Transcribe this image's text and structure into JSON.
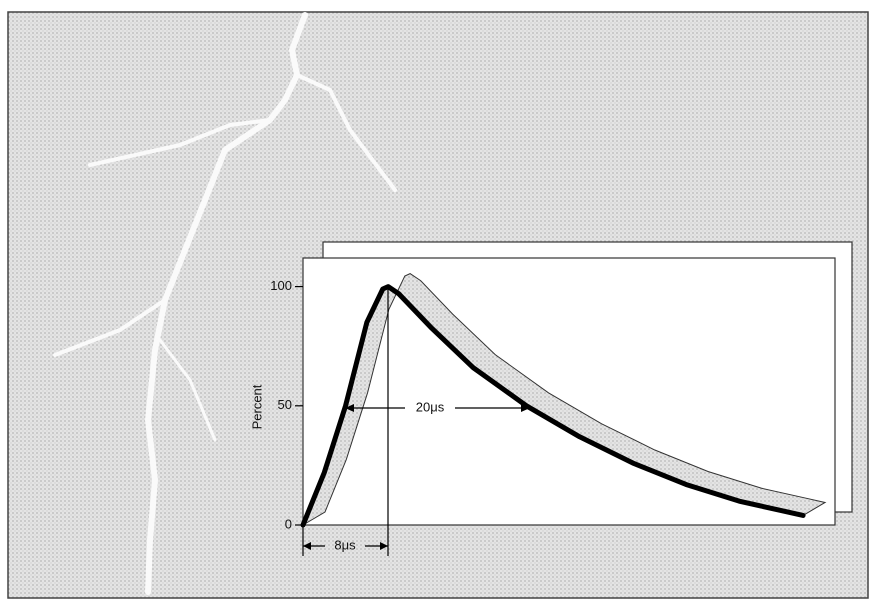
{
  "chart_data": {
    "type": "line",
    "y_label": "Percent",
    "x": [
      0,
      2,
      4,
      6,
      7.5,
      8,
      9,
      12,
      16,
      21,
      26,
      31,
      36,
      41,
      45,
      47
    ],
    "series": [
      {
        "color": "#000000",
        "values": [
          0,
          22,
          50,
          85,
          99,
          100,
          97,
          83,
          66,
          50,
          37,
          26,
          17,
          10,
          6,
          4
        ]
      }
    ],
    "xlim": [
      0,
      50
    ],
    "ylim": [
      0,
      112
    ],
    "yticks": [
      0,
      50,
      100
    ],
    "annotations": [
      "20μs",
      "8μs"
    ]
  }
}
